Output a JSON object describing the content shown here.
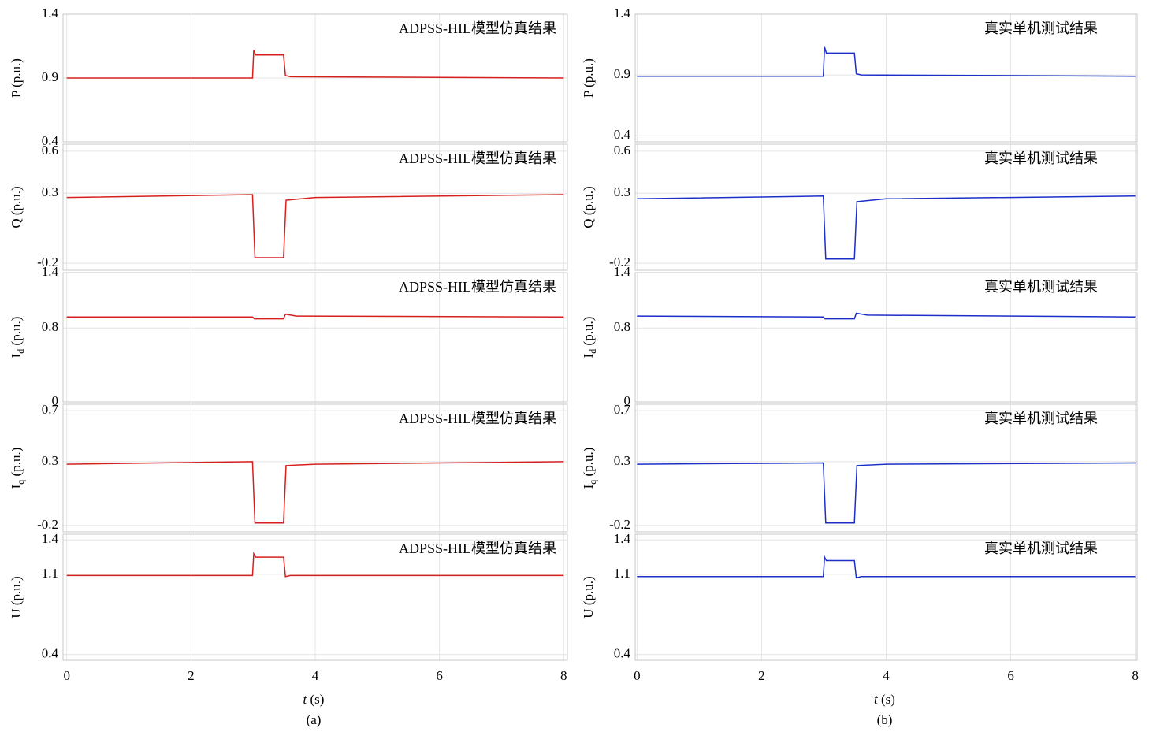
{
  "chart_data": [
    {
      "type": "line",
      "ylabel": "P (p.u.)",
      "annotation": "ADPSS-HIL模型仿真结果",
      "ylim": [
        0.4,
        1.4
      ],
      "yticks": [
        0.4,
        0.9,
        1.4
      ],
      "xlim": [
        -0.06,
        8.06
      ],
      "xticks": [
        0,
        2,
        4,
        6,
        8
      ],
      "grid": true,
      "x": [
        0,
        2.99,
        3.01,
        3.04,
        3.49,
        3.52,
        3.6,
        8
      ],
      "series": [
        {
          "color": "#d62020",
          "values": [
            0.9,
            0.9,
            1.12,
            1.08,
            1.08,
            0.92,
            0.91,
            0.9
          ]
        }
      ]
    },
    {
      "type": "line",
      "ylabel": "Q (p.u.)",
      "annotation": "ADPSS-HIL模型仿真结果",
      "ylim": [
        -0.25,
        0.65
      ],
      "yticks": [
        -0.2,
        0.3,
        0.6
      ],
      "xlim": [
        -0.06,
        8.06
      ],
      "xticks": [
        0,
        2,
        4,
        6,
        8
      ],
      "grid": true,
      "x": [
        0,
        2.99,
        3.03,
        3.49,
        3.53,
        4,
        8
      ],
      "series": [
        {
          "color": "#d62020",
          "values": [
            0.27,
            0.29,
            -0.16,
            -0.16,
            0.25,
            0.27,
            0.29
          ]
        }
      ]
    },
    {
      "type": "line",
      "ylabel": [
        "I",
        "d",
        " (p.u.)"
      ],
      "annotation": "ADPSS-HIL模型仿真结果",
      "ylim": [
        0,
        1.4
      ],
      "yticks": [
        0,
        0.8,
        1.4
      ],
      "xlim": [
        -0.06,
        8.06
      ],
      "xticks": [
        0,
        2,
        4,
        6,
        8
      ],
      "grid": true,
      "x": [
        0,
        2.99,
        3.02,
        3.49,
        3.52,
        3.7,
        8
      ],
      "series": [
        {
          "color": "#d62020",
          "values": [
            0.92,
            0.92,
            0.9,
            0.9,
            0.95,
            0.93,
            0.92
          ]
        }
      ]
    },
    {
      "type": "line",
      "ylabel": [
        "I",
        "q",
        " (p.u.)"
      ],
      "annotation": "ADPSS-HIL模型仿真结果",
      "ylim": [
        -0.25,
        0.75
      ],
      "yticks": [
        -0.2,
        0.3,
        0.7
      ],
      "xlim": [
        -0.06,
        8.06
      ],
      "xticks": [
        0,
        2,
        4,
        6,
        8
      ],
      "grid": true,
      "x": [
        0,
        2.99,
        3.03,
        3.49,
        3.53,
        4,
        8
      ],
      "series": [
        {
          "color": "#d62020",
          "values": [
            0.28,
            0.3,
            -0.18,
            -0.18,
            0.27,
            0.28,
            0.3
          ]
        }
      ]
    },
    {
      "type": "line",
      "ylabel": "U (p.u.)",
      "annotation": "ADPSS-HIL模型仿真结果",
      "ylim": [
        0.35,
        1.45
      ],
      "yticks": [
        0.4,
        1.1,
        1.4
      ],
      "xlim": [
        -0.06,
        8.06
      ],
      "xticks": [
        0,
        2,
        4,
        6,
        8
      ],
      "grid": true,
      "xtick_labels": true,
      "xlabel": [
        "t",
        " (s)"
      ],
      "caption": "(a)",
      "x": [
        0,
        2.99,
        3.01,
        3.04,
        3.49,
        3.52,
        3.6,
        8
      ],
      "series": [
        {
          "color": "#d62020",
          "values": [
            1.09,
            1.09,
            1.28,
            1.25,
            1.25,
            1.08,
            1.09,
            1.09
          ]
        }
      ]
    },
    {
      "type": "line",
      "ylabel": "P (p.u.)",
      "annotation": "真实单机测试结果",
      "ylim": [
        0.35,
        1.4
      ],
      "yticks": [
        0.4,
        0.9,
        1.4
      ],
      "xlim": [
        -0.03,
        8.03
      ],
      "xticks": [
        0,
        2,
        4,
        6,
        8
      ],
      "grid": true,
      "x": [
        0,
        2.99,
        3.01,
        3.04,
        3.49,
        3.52,
        3.6,
        8
      ],
      "series": [
        {
          "color": "#1c2fc8",
          "values": [
            0.89,
            0.89,
            1.13,
            1.08,
            1.08,
            0.91,
            0.9,
            0.89
          ]
        }
      ]
    },
    {
      "type": "line",
      "ylabel": "Q (p.u.)",
      "annotation": "真实单机测试结果",
      "ylim": [
        -0.25,
        0.65
      ],
      "yticks": [
        -0.2,
        0.3,
        0.6
      ],
      "xlim": [
        -0.03,
        8.03
      ],
      "xticks": [
        0,
        2,
        4,
        6,
        8
      ],
      "grid": true,
      "x": [
        0,
        2.99,
        3.03,
        3.49,
        3.53,
        4,
        8
      ],
      "series": [
        {
          "color": "#1c2fc8",
          "values": [
            0.26,
            0.28,
            -0.17,
            -0.17,
            0.24,
            0.26,
            0.28
          ]
        }
      ]
    },
    {
      "type": "line",
      "ylabel": [
        "I",
        "d",
        " (p.u.)"
      ],
      "annotation": "真实单机测试结果",
      "ylim": [
        0,
        1.4
      ],
      "yticks": [
        0,
        0.8,
        1.4
      ],
      "xlim": [
        -0.03,
        8.03
      ],
      "xticks": [
        0,
        2,
        4,
        6,
        8
      ],
      "grid": true,
      "x": [
        0,
        2.99,
        3.02,
        3.49,
        3.52,
        3.7,
        8
      ],
      "series": [
        {
          "color": "#1c2fc8",
          "values": [
            0.93,
            0.92,
            0.9,
            0.9,
            0.96,
            0.94,
            0.92
          ]
        }
      ]
    },
    {
      "type": "line",
      "ylabel": [
        "I",
        "q",
        " (p.u.)"
      ],
      "annotation": "真实单机测试结果",
      "ylim": [
        -0.25,
        0.75
      ],
      "yticks": [
        -0.2,
        0.3,
        0.7
      ],
      "xlim": [
        -0.03,
        8.03
      ],
      "xticks": [
        0,
        2,
        4,
        6,
        8
      ],
      "grid": true,
      "x": [
        0,
        2.99,
        3.03,
        3.49,
        3.53,
        4,
        8
      ],
      "series": [
        {
          "color": "#1c2fc8",
          "values": [
            0.28,
            0.29,
            -0.18,
            -0.18,
            0.27,
            0.28,
            0.29
          ]
        }
      ]
    },
    {
      "type": "line",
      "ylabel": "U (p.u.)",
      "annotation": "真实单机测试结果",
      "ylim": [
        0.35,
        1.45
      ],
      "yticks": [
        0.4,
        1.1,
        1.4
      ],
      "xlim": [
        -0.03,
        8.03
      ],
      "xticks": [
        0,
        2,
        4,
        6,
        8
      ],
      "grid": true,
      "xtick_labels": true,
      "xlabel": [
        "t",
        " (s)"
      ],
      "caption": "(b)",
      "x": [
        0,
        2.99,
        3.01,
        3.04,
        3.49,
        3.52,
        3.6,
        8
      ],
      "series": [
        {
          "color": "#1c2fc8",
          "values": [
            1.08,
            1.08,
            1.25,
            1.22,
            1.22,
            1.07,
            1.08,
            1.08
          ]
        }
      ]
    }
  ]
}
